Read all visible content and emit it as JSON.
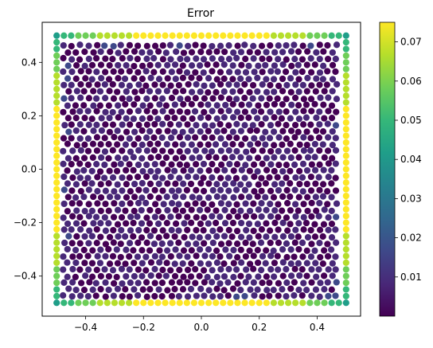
{
  "chart_data": {
    "type": "scatter",
    "title": "Error",
    "xlabel": "",
    "ylabel": "",
    "xlim": [
      -0.55,
      0.55
    ],
    "ylim": [
      -0.55,
      0.55
    ],
    "x_ticks": [
      "−0.4",
      "−0.2",
      "0.0",
      "0.2",
      "0.4"
    ],
    "x_tick_values": [
      -0.4,
      -0.2,
      0.0,
      0.2,
      0.4
    ],
    "y_ticks": [
      "−0.4",
      "−0.2",
      "0.0",
      "0.2",
      "0.4"
    ],
    "y_tick_values": [
      -0.4,
      -0.2,
      0.0,
      0.2,
      0.4
    ],
    "grid": false,
    "colormap": "viridis",
    "colorbar": {
      "min": 0.0,
      "max": 0.075,
      "ticks": [
        "0.01",
        "0.02",
        "0.03",
        "0.04",
        "0.05",
        "0.06",
        "0.07"
      ],
      "tick_values": [
        0.01,
        0.02,
        0.03,
        0.04,
        0.05,
        0.06,
        0.07
      ]
    },
    "domain": {
      "x": [
        -0.5,
        0.5
      ],
      "y": [
        -0.5,
        0.5
      ]
    },
    "boundary_points_per_side": 40,
    "boundary_error": {
      "corner": 0.045,
      "mid_edge": 0.075
    },
    "interior_error_typical": 0.002,
    "point_colors": [
      "#440154",
      "#482878",
      "#3e4989",
      "#31688e",
      "#26828e",
      "#1f9e89",
      "#35b779",
      "#6ece58",
      "#b5de2b",
      "#fde725"
    ]
  }
}
